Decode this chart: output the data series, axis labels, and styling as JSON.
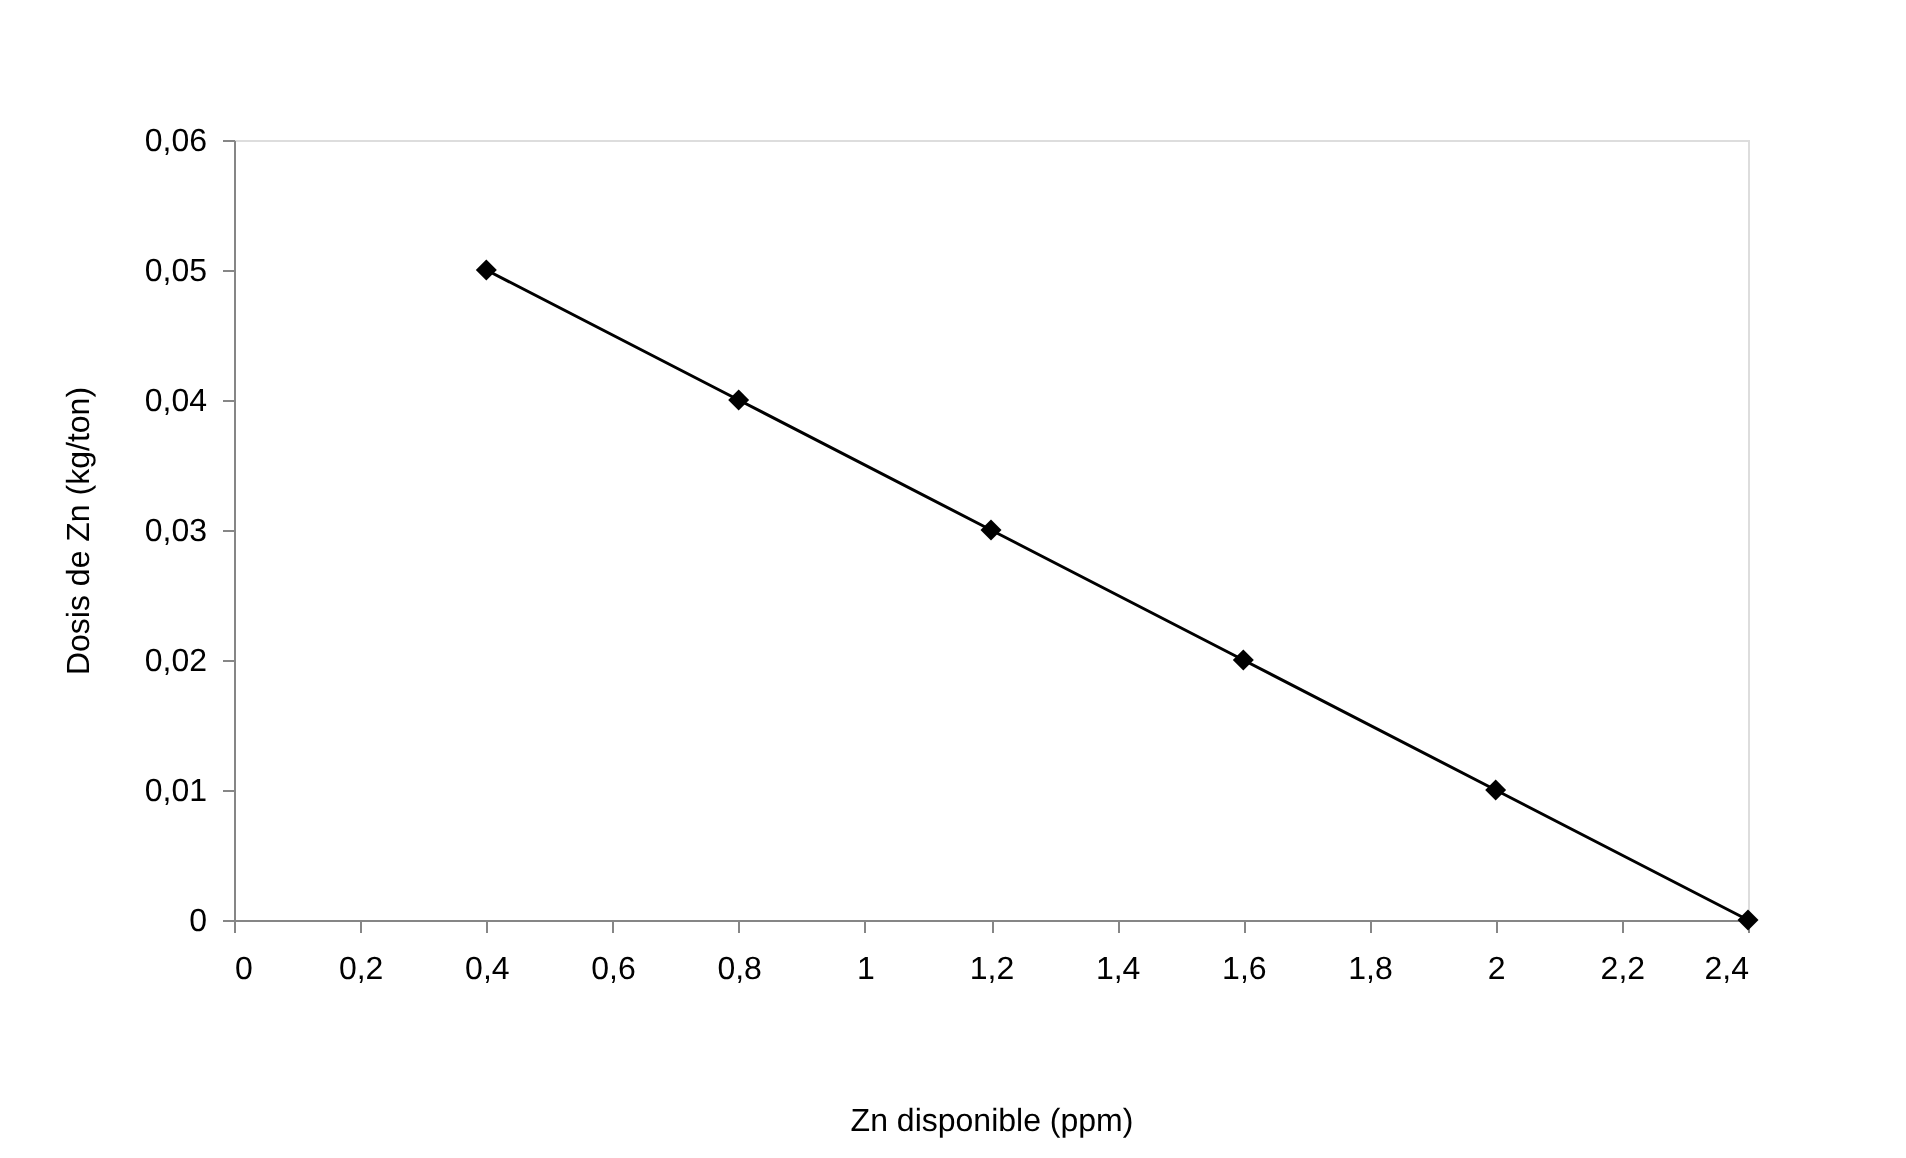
{
  "chart_data": {
    "type": "line",
    "xlabel": "Zn disponible (ppm)",
    "ylabel": "Dosis de Zn  (kg/ton)",
    "x": [
      0.4,
      0.8,
      1.2,
      1.6,
      2.0,
      2.4
    ],
    "series": [
      {
        "color": "#000000",
        "values": [
          0.05,
          0.04,
          0.03,
          0.02,
          0.01,
          0
        ]
      }
    ],
    "xlim": [
      0,
      2.4
    ],
    "xticks": [
      0,
      {
        "value": 0.2,
        "label": "0,2"
      },
      {
        "value": 0.4,
        "label": "0,4"
      },
      {
        "value": 0.6,
        "label": "0,6"
      },
      {
        "value": 0.8,
        "label": "0,8"
      },
      1,
      {
        "value": 1.2,
        "label": "1,2"
      },
      {
        "value": 1.4,
        "label": "1,4"
      },
      {
        "value": 1.6,
        "label": "1,6"
      },
      {
        "value": 1.8,
        "label": "1,8"
      },
      2,
      {
        "value": 2.2,
        "label": "2,2"
      },
      {
        "value": 2.4,
        "label": "2,4"
      }
    ],
    "ylim": [
      0,
      0.06
    ],
    "yticks": [
      0,
      {
        "value": 0.01,
        "label": "0,01"
      },
      {
        "value": 0.02,
        "label": "0,02"
      },
      {
        "value": 0.03,
        "label": "0,03"
      },
      {
        "value": 0.04,
        "label": "0,04"
      },
      {
        "value": 0.05,
        "label": "0,05"
      },
      {
        "value": 0.06,
        "label": "0,06"
      }
    ],
    "grid": false,
    "marker": "diamond",
    "line_style": "solid"
  }
}
